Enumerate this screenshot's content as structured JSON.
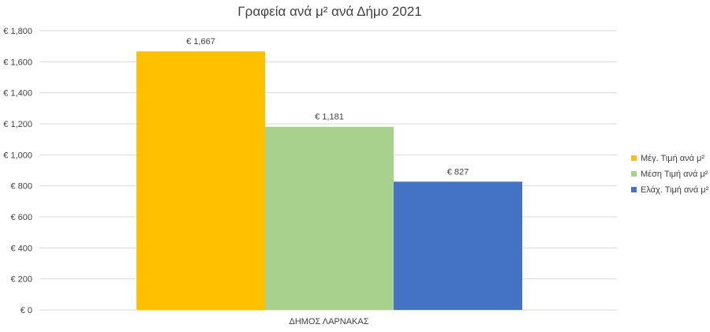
{
  "chart_data": {
    "type": "bar",
    "title": "Γραφεία ανά μ² ανά Δήμο 2021",
    "categories": [
      "ΔΗΜΟΣ ΛΑΡΝΑΚΑΣ"
    ],
    "series": [
      {
        "name": "Μέγ. Τιμή ανά μ²",
        "values": [
          1667
        ],
        "color": "#ffc000",
        "label": "€ 1,667"
      },
      {
        "name": "Μέση Τιμή ανά μ²",
        "values": [
          1181
        ],
        "color": "#a9d18e",
        "label": "€ 1,181"
      },
      {
        "name": "Ελάχ. Τιμή ανά μ²",
        "values": [
          827
        ],
        "color": "#4472c4",
        "label": "€ 827"
      }
    ],
    "ylim": [
      0,
      1800
    ],
    "yticks": [
      0,
      200,
      400,
      600,
      800,
      1000,
      1200,
      1400,
      1600,
      1800
    ],
    "ytick_labels": [
      "€ 0",
      "€ 200",
      "€ 400",
      "€ 600",
      "€ 800",
      "€ 1,000",
      "€ 1,200",
      "€ 1,400",
      "€ 1,600",
      "€ 1,800"
    ],
    "grid": true,
    "legend_position": "right"
  }
}
